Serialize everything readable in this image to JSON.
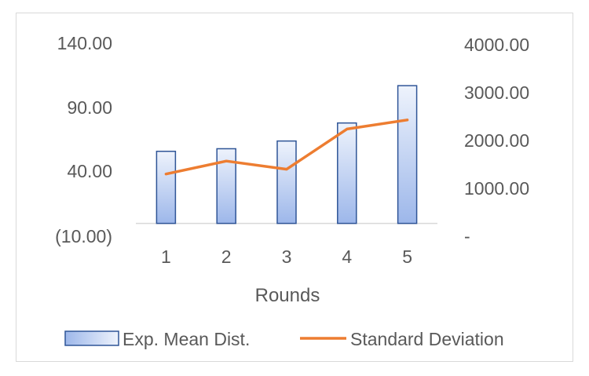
{
  "chart_data": {
    "type": "bar",
    "title": "",
    "xlabel": "Rounds",
    "categories": [
      "1",
      "2",
      "3",
      "4",
      "5"
    ],
    "series": [
      {
        "name": "Exp. Mean Dist.",
        "type": "bar",
        "axis": "left",
        "values": [
          56,
          58,
          64,
          78,
          107
        ],
        "color": "#4472c4"
      },
      {
        "name": "Standard Deviation",
        "type": "line",
        "axis": "right",
        "values": [
          1300,
          1570,
          1400,
          2240,
          2430
        ],
        "color": "#ed7d31"
      }
    ],
    "y_left": {
      "ylim": [
        -10,
        140
      ],
      "ticks": [
        -10,
        40,
        90,
        140
      ],
      "tick_labels": [
        "(10.00)",
        "40.00",
        "90.00",
        "140.00"
      ]
    },
    "y_right": {
      "ylim": [
        0,
        4000
      ],
      "ticks": [
        0,
        1000,
        2000,
        3000,
        4000
      ],
      "tick_labels": [
        "-",
        "1000.00",
        "2000.00",
        "3000.00",
        "4000.00"
      ]
    },
    "grid": false,
    "legend": "bottom"
  }
}
